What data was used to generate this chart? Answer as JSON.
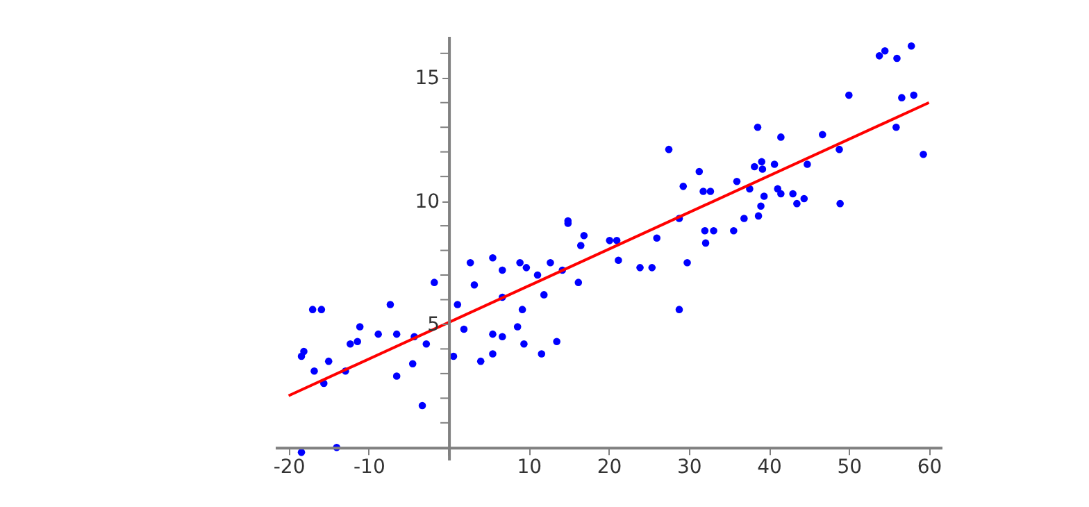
{
  "chart_data": {
    "type": "scatter",
    "grid": false,
    "xlim": [
      -21.7,
      61.6
    ],
    "ylim": [
      -0.5,
      16.7
    ],
    "xticks": [
      -20,
      -10,
      {
        "value": 0,
        "label": null
      },
      10,
      20,
      30,
      40,
      50,
      60
    ],
    "yticks": [
      {
        "value": 1,
        "label": null
      },
      {
        "value": 2,
        "label": null
      },
      {
        "value": 3,
        "label": null
      },
      {
        "value": 4,
        "label": null
      },
      5,
      {
        "value": 6,
        "label": null
      },
      {
        "value": 7,
        "label": null
      },
      {
        "value": 8,
        "label": null
      },
      {
        "value": 9,
        "label": null
      },
      10,
      {
        "value": 11,
        "label": null
      },
      {
        "value": 12,
        "label": null
      },
      {
        "value": 13,
        "label": null
      },
      {
        "value": 14,
        "label": null
      },
      15,
      {
        "value": 16,
        "label": null
      }
    ],
    "series": [
      {
        "type": "scatter",
        "marker": "circle",
        "color": "#0000ff",
        "x": [
          -18.4,
          -18.1,
          -17.0,
          -15.9,
          -16.8,
          -15.6,
          -15.0,
          -12.9,
          -12.3,
          -11.4,
          -11.1,
          -8.8,
          -7.3,
          -6.5,
          -6.5,
          -4.3,
          -4.5,
          -3.3,
          -2.8,
          -1.8,
          -14.0,
          -18.4,
          0.6,
          1.1,
          1.9,
          2.7,
          3.2,
          4.0,
          5.5,
          5.5,
          5.5,
          6.7,
          6.7,
          6.7,
          8.9,
          9.7,
          9.2,
          8.6,
          9.4,
          11.1,
          11.9,
          12.7,
          11.6,
          13.5,
          14.2,
          16.2,
          16.5,
          16.9,
          14.9,
          14.9,
          20.1,
          21.0,
          21.2,
          23.9,
          25.4,
          26.0,
          27.5,
          28.8,
          29.3,
          28.8,
          29.8,
          31.3,
          31.8,
          32.7,
          32.0,
          33.1,
          32.1,
          35.6,
          36.9,
          36.0,
          37.6,
          38.6,
          38.2,
          39.1,
          39.2,
          40.7,
          41.5,
          39.4,
          39.0,
          38.7,
          41.1,
          41.5,
          43.0,
          43.5,
          44.4,
          44.8,
          46.7,
          48.8,
          48.9,
          50.0,
          53.8,
          54.5,
          56.0,
          57.8,
          56.6,
          58.1,
          55.9,
          59.3
        ],
        "values": [
          3.7,
          3.9,
          5.6,
          5.6,
          3.1,
          2.6,
          3.5,
          3.1,
          4.2,
          4.3,
          4.9,
          4.6,
          5.8,
          4.6,
          2.9,
          4.5,
          3.4,
          1.7,
          4.2,
          6.7,
          0.0,
          -0.2,
          3.7,
          5.8,
          4.8,
          7.5,
          6.6,
          3.5,
          7.7,
          4.6,
          3.8,
          7.2,
          6.1,
          4.5,
          7.5,
          7.3,
          5.6,
          4.9,
          4.2,
          7.0,
          6.2,
          7.5,
          3.8,
          4.3,
          7.2,
          6.7,
          8.2,
          8.6,
          9.2,
          9.1,
          8.4,
          8.4,
          7.6,
          7.3,
          7.3,
          8.5,
          12.1,
          5.6,
          10.6,
          9.3,
          7.5,
          11.2,
          10.4,
          10.4,
          8.8,
          8.8,
          8.3,
          8.8,
          9.3,
          10.8,
          10.5,
          13.0,
          11.4,
          11.6,
          11.3,
          11.5,
          12.6,
          10.2,
          9.8,
          9.4,
          10.5,
          10.3,
          10.3,
          9.9,
          10.1,
          11.5,
          12.7,
          12.1,
          9.9,
          14.3,
          15.9,
          16.1,
          15.8,
          16.3,
          14.2,
          14.3,
          13.0,
          11.9
        ]
      },
      {
        "type": "line",
        "color": "#ff0000",
        "x": [
          -20,
          60
        ],
        "values": [
          2.1,
          14.0
        ]
      }
    ]
  }
}
